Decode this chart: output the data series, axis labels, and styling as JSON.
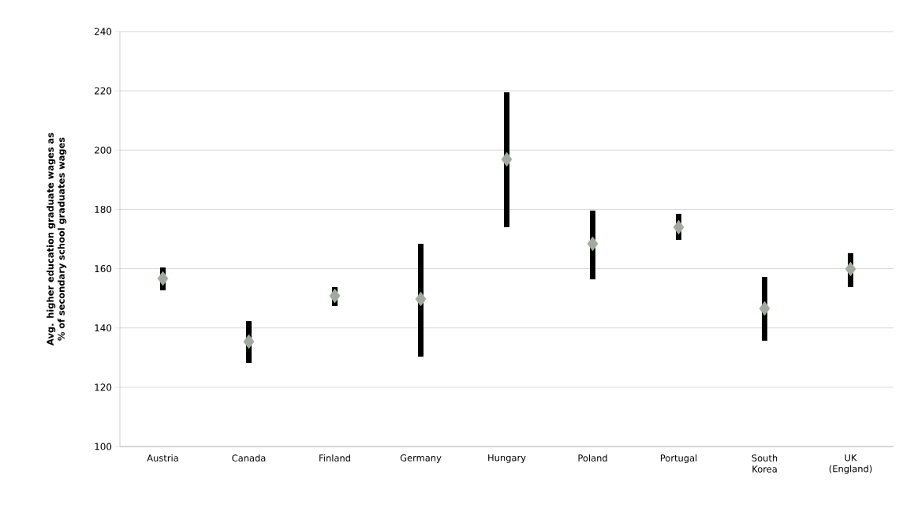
{
  "chart_data": {
    "type": "scatter",
    "ylabel": "Avg. higher education graduate wages as % of secondary school graduates wages",
    "categories": [
      "Austria",
      "Canada",
      "Finland",
      "Germany",
      "Hungary",
      "Poland",
      "Portugal",
      "South Korea",
      "UK (England)"
    ],
    "values": [
      156.7,
      135.4,
      150.8,
      149.8,
      196.9,
      168.4,
      174.0,
      146.6,
      159.9
    ],
    "errors": [
      [
        152.7,
        160.4
      ],
      [
        128.2,
        142.3
      ],
      [
        147.4,
        153.8
      ],
      [
        130.3,
        168.4
      ],
      [
        174.0,
        219.5
      ],
      [
        156.4,
        179.6
      ],
      [
        169.7,
        178.5
      ],
      [
        135.7,
        157.2
      ],
      [
        153.8,
        165.2
      ]
    ],
    "color": "#a6a6a6",
    "marker": "diamond",
    "grid": "y",
    "ylim": [
      100,
      240
    ],
    "yticks": [
      100,
      120,
      140,
      160,
      180,
      200,
      220,
      240
    ]
  }
}
